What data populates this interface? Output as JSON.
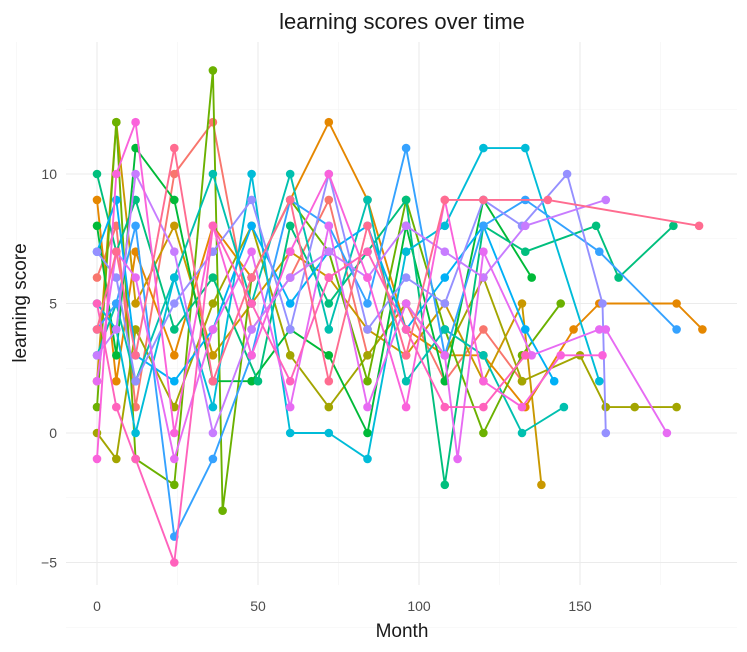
{
  "chart_data": {
    "type": "line",
    "title": "learning scores over time",
    "xlabel": "Month",
    "ylabel": "learning score",
    "xlim": [
      -5,
      190
    ],
    "ylim": [
      -6,
      15
    ],
    "x_ticks": [
      0,
      50,
      100,
      150
    ],
    "y_ticks": [
      -5,
      0,
      5,
      10
    ],
    "grid": true,
    "legend": "none",
    "marker": "point",
    "series": [
      {
        "color": "#F8766D",
        "points": [
          [
            0,
            6
          ],
          [
            6,
            8
          ],
          [
            12,
            1
          ],
          [
            24,
            10
          ],
          [
            36,
            12
          ],
          [
            48,
            4
          ],
          [
            60,
            6
          ],
          [
            72,
            9
          ],
          [
            84,
            3
          ],
          [
            96,
            5
          ],
          [
            108,
            2
          ],
          [
            120,
            4
          ],
          [
            132,
            2
          ]
        ]
      },
      {
        "color": "#E58700",
        "points": [
          [
            0,
            9
          ],
          [
            6,
            2
          ],
          [
            12,
            7
          ],
          [
            24,
            3
          ],
          [
            36,
            8
          ],
          [
            48,
            6
          ],
          [
            60,
            9
          ],
          [
            72,
            12
          ],
          [
            84,
            9
          ],
          [
            96,
            4
          ],
          [
            108,
            3
          ],
          [
            120,
            3
          ],
          [
            133,
            1
          ],
          [
            148,
            4
          ],
          [
            156,
            5
          ],
          [
            180,
            5
          ],
          [
            188,
            4
          ]
        ]
      },
      {
        "color": "#C99800",
        "points": [
          [
            0,
            2
          ],
          [
            6,
            12
          ],
          [
            12,
            5
          ],
          [
            24,
            8
          ],
          [
            36,
            3
          ],
          [
            48,
            5
          ],
          [
            60,
            7
          ],
          [
            72,
            6
          ],
          [
            84,
            4
          ],
          [
            96,
            3
          ],
          [
            108,
            5
          ],
          [
            120,
            2
          ],
          [
            132,
            5
          ],
          [
            138,
            -2
          ]
        ]
      },
      {
        "color": "#A3A500",
        "points": [
          [
            0,
            0
          ],
          [
            6,
            -1
          ],
          [
            12,
            4
          ],
          [
            24,
            1
          ],
          [
            36,
            5
          ],
          [
            48,
            8
          ],
          [
            60,
            3
          ],
          [
            72,
            1
          ],
          [
            84,
            3
          ],
          [
            96,
            5
          ],
          [
            108,
            3
          ],
          [
            120,
            6
          ],
          [
            132,
            2
          ],
          [
            150,
            3
          ],
          [
            158,
            1
          ],
          [
            167,
            1
          ],
          [
            180,
            1
          ]
        ]
      },
      {
        "color": "#6BB100",
        "points": [
          [
            0,
            1
          ],
          [
            6,
            12
          ],
          [
            12,
            -1
          ],
          [
            24,
            -2
          ],
          [
            36,
            14
          ],
          [
            39,
            -3
          ],
          [
            48,
            6
          ],
          [
            60,
            9
          ],
          [
            72,
            7
          ],
          [
            84,
            2
          ],
          [
            96,
            9
          ],
          [
            108,
            4
          ],
          [
            120,
            0
          ],
          [
            132,
            3
          ],
          [
            144,
            5
          ]
        ]
      },
      {
        "color": "#00BA38",
        "points": [
          [
            0,
            8
          ],
          [
            6,
            3
          ],
          [
            12,
            11
          ],
          [
            24,
            9
          ],
          [
            36,
            2
          ],
          [
            48,
            2
          ],
          [
            60,
            4
          ],
          [
            72,
            3
          ],
          [
            84,
            0
          ],
          [
            96,
            8
          ],
          [
            108,
            2
          ],
          [
            120,
            9
          ],
          [
            135,
            6
          ]
        ]
      },
      {
        "color": "#00BF7D",
        "points": [
          [
            0,
            10
          ],
          [
            6,
            7
          ],
          [
            12,
            9
          ],
          [
            24,
            4
          ],
          [
            36,
            6
          ],
          [
            50,
            2
          ],
          [
            60,
            8
          ],
          [
            72,
            5
          ],
          [
            84,
            7
          ],
          [
            96,
            9
          ],
          [
            108,
            -2
          ],
          [
            120,
            8
          ],
          [
            133,
            7
          ],
          [
            155,
            8
          ],
          [
            162,
            6
          ],
          [
            179,
            8
          ]
        ]
      },
      {
        "color": "#00C0AF",
        "points": [
          [
            0,
            3
          ],
          [
            6,
            5
          ],
          [
            12,
            2
          ],
          [
            24,
            6
          ],
          [
            36,
            10
          ],
          [
            48,
            5
          ],
          [
            60,
            10
          ],
          [
            72,
            4
          ],
          [
            84,
            9
          ],
          [
            96,
            2
          ],
          [
            108,
            4
          ],
          [
            120,
            3
          ],
          [
            132,
            0
          ],
          [
            145,
            1
          ]
        ]
      },
      {
        "color": "#00BCD8",
        "points": [
          [
            0,
            5
          ],
          [
            6,
            4
          ],
          [
            12,
            0
          ],
          [
            24,
            6
          ],
          [
            36,
            1
          ],
          [
            48,
            10
          ],
          [
            60,
            0
          ],
          [
            72,
            0
          ],
          [
            84,
            -1
          ],
          [
            96,
            7
          ],
          [
            108,
            8
          ],
          [
            120,
            11
          ],
          [
            133,
            11
          ],
          [
            156,
            2
          ]
        ]
      },
      {
        "color": "#00B0F6",
        "points": [
          [
            0,
            7
          ],
          [
            6,
            9
          ],
          [
            12,
            3
          ],
          [
            24,
            2
          ],
          [
            36,
            4
          ],
          [
            48,
            8
          ],
          [
            60,
            5
          ],
          [
            72,
            7
          ],
          [
            84,
            8
          ],
          [
            96,
            4
          ],
          [
            108,
            6
          ],
          [
            120,
            8
          ],
          [
            133,
            4
          ],
          [
            142,
            2
          ]
        ]
      },
      {
        "color": "#35A2FF",
        "points": [
          [
            0,
            4
          ],
          [
            6,
            5
          ],
          [
            12,
            8
          ],
          [
            24,
            -4
          ],
          [
            36,
            -1
          ],
          [
            48,
            3
          ],
          [
            60,
            9
          ],
          [
            72,
            8
          ],
          [
            84,
            5
          ],
          [
            96,
            11
          ],
          [
            108,
            3
          ],
          [
            120,
            8
          ],
          [
            133,
            9
          ],
          [
            156,
            7
          ],
          [
            180,
            4
          ]
        ]
      },
      {
        "color": "#9590FF",
        "points": [
          [
            0,
            7
          ],
          [
            6,
            6
          ],
          [
            12,
            2
          ],
          [
            24,
            5
          ],
          [
            36,
            7
          ],
          [
            48,
            9
          ],
          [
            60,
            4
          ],
          [
            72,
            10
          ],
          [
            84,
            4
          ],
          [
            96,
            6
          ],
          [
            108,
            5
          ],
          [
            120,
            9
          ],
          [
            132,
            8
          ],
          [
            146,
            10
          ],
          [
            157,
            5
          ],
          [
            158,
            0
          ]
        ]
      },
      {
        "color": "#C77CFF",
        "points": [
          [
            0,
            3
          ],
          [
            6,
            4
          ],
          [
            12,
            10
          ],
          [
            24,
            7
          ],
          [
            36,
            0
          ],
          [
            48,
            4
          ],
          [
            60,
            6
          ],
          [
            72,
            7
          ],
          [
            84,
            6
          ],
          [
            96,
            8
          ],
          [
            108,
            7
          ],
          [
            120,
            6
          ],
          [
            133,
            8
          ],
          [
            158,
            9
          ]
        ]
      },
      {
        "color": "#E76BF3",
        "points": [
          [
            0,
            2
          ],
          [
            6,
            7
          ],
          [
            12,
            6
          ],
          [
            24,
            -1
          ],
          [
            36,
            4
          ],
          [
            48,
            7
          ],
          [
            60,
            1
          ],
          [
            72,
            8
          ],
          [
            84,
            1
          ],
          [
            96,
            5
          ],
          [
            108,
            3
          ],
          [
            112,
            -1
          ],
          [
            120,
            7
          ],
          [
            135,
            3
          ],
          [
            156,
            4
          ],
          [
            158,
            4
          ],
          [
            177,
            0
          ]
        ]
      },
      {
        "color": "#FA62DB",
        "points": [
          [
            0,
            -1
          ],
          [
            6,
            10
          ],
          [
            12,
            12
          ],
          [
            24,
            0
          ],
          [
            36,
            8
          ],
          [
            48,
            3
          ],
          [
            60,
            7
          ],
          [
            72,
            10
          ],
          [
            84,
            6
          ],
          [
            96,
            1
          ],
          [
            108,
            9
          ],
          [
            120,
            2
          ],
          [
            132,
            1
          ],
          [
            144,
            3
          ],
          [
            157,
            3
          ]
        ]
      },
      {
        "color": "#FF62BC",
        "points": [
          [
            0,
            5
          ],
          [
            6,
            1
          ],
          [
            12,
            -1
          ],
          [
            24,
            -5
          ],
          [
            36,
            8
          ],
          [
            48,
            5
          ],
          [
            60,
            2
          ],
          [
            72,
            6
          ],
          [
            84,
            7
          ],
          [
            96,
            4
          ],
          [
            108,
            1
          ],
          [
            120,
            1
          ],
          [
            133,
            3
          ]
        ]
      },
      {
        "color": "#FF6C90",
        "points": [
          [
            0,
            4
          ],
          [
            6,
            7
          ],
          [
            12,
            3
          ],
          [
            24,
            11
          ],
          [
            36,
            2
          ],
          [
            48,
            6
          ],
          [
            60,
            9
          ],
          [
            72,
            2
          ],
          [
            84,
            8
          ],
          [
            96,
            3
          ],
          [
            108,
            9
          ],
          [
            120,
            9
          ],
          [
            140,
            9
          ],
          [
            187,
            8
          ]
        ]
      }
    ]
  }
}
